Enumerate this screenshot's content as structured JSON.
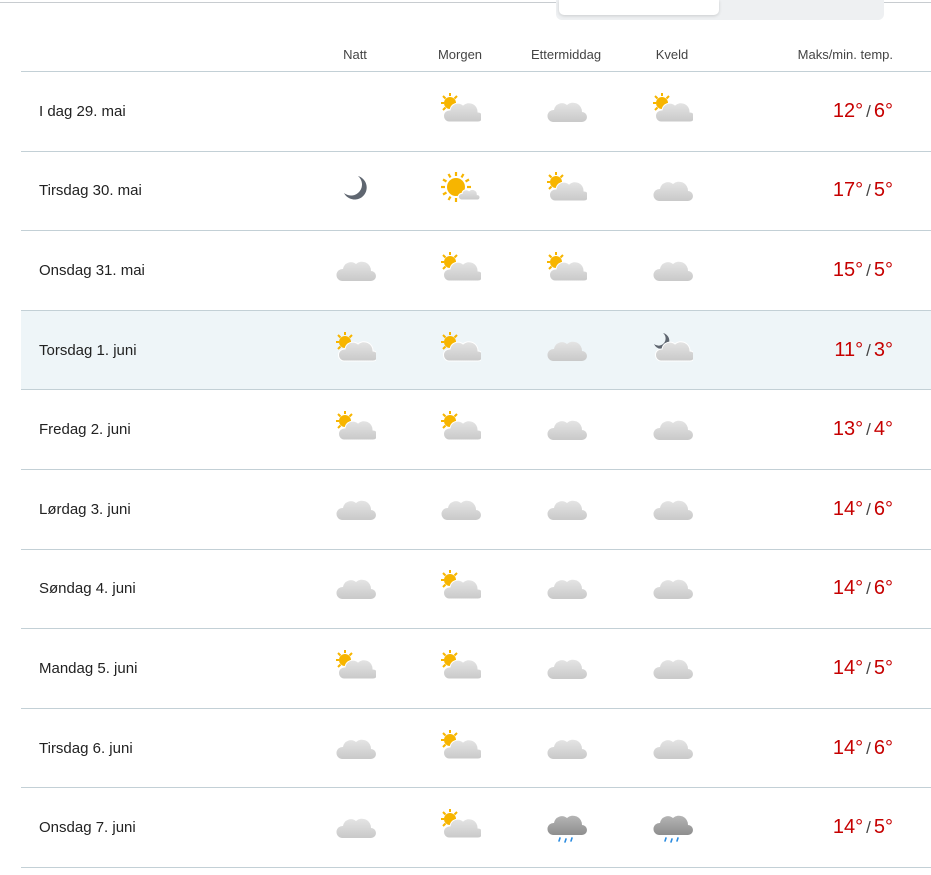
{
  "columns": {
    "natt": "Natt",
    "morgen": "Morgen",
    "ettermiddag": "Ettermiddag",
    "kveld": "Kveld",
    "temp": "Maks/min. temp."
  },
  "colors": {
    "temp": "#c60000",
    "highlight_row": "#eef5f8",
    "divider": "#c3d0d6"
  },
  "rows": [
    {
      "day": "I dag 29. mai",
      "icons": [
        "",
        "partly-cloudy-day",
        "cloudy",
        "partly-cloudy-day"
      ],
      "max": "12°",
      "min": "6°"
    },
    {
      "day": "Tirsdag 30. mai",
      "icons": [
        "clear-night",
        "fair-day",
        "partly-cloudy-day",
        "cloudy"
      ],
      "max": "17°",
      "min": "5°"
    },
    {
      "day": "Onsdag 31. mai",
      "icons": [
        "cloudy",
        "partly-cloudy-day",
        "partly-cloudy-day",
        "cloudy"
      ],
      "max": "15°",
      "min": "5°"
    },
    {
      "day": "Torsdag 1. juni",
      "icons": [
        "partly-cloudy-day",
        "partly-cloudy-day",
        "cloudy",
        "partly-cloudy-night"
      ],
      "max": "11°",
      "min": "3°",
      "highlight": true
    },
    {
      "day": "Fredag 2. juni",
      "icons": [
        "partly-cloudy-day",
        "partly-cloudy-day",
        "cloudy",
        "cloudy"
      ],
      "max": "13°",
      "min": "4°"
    },
    {
      "day": "Lørdag 3. juni",
      "icons": [
        "cloudy",
        "cloudy",
        "cloudy",
        "cloudy"
      ],
      "max": "14°",
      "min": "6°"
    },
    {
      "day": "Søndag 4. juni",
      "icons": [
        "cloudy",
        "partly-cloudy-day",
        "cloudy",
        "cloudy"
      ],
      "max": "14°",
      "min": "6°"
    },
    {
      "day": "Mandag 5. juni",
      "icons": [
        "partly-cloudy-day",
        "partly-cloudy-day",
        "cloudy",
        "cloudy"
      ],
      "max": "14°",
      "min": "5°"
    },
    {
      "day": "Tirsdag 6. juni",
      "icons": [
        "cloudy",
        "partly-cloudy-day",
        "cloudy",
        "cloudy"
      ],
      "max": "14°",
      "min": "6°"
    },
    {
      "day": "Onsdag 7. juni",
      "icons": [
        "cloudy",
        "partly-cloudy-day",
        "light-rain",
        "light-rain"
      ],
      "max": "14°",
      "min": "5°"
    }
  ],
  "slash": "/"
}
